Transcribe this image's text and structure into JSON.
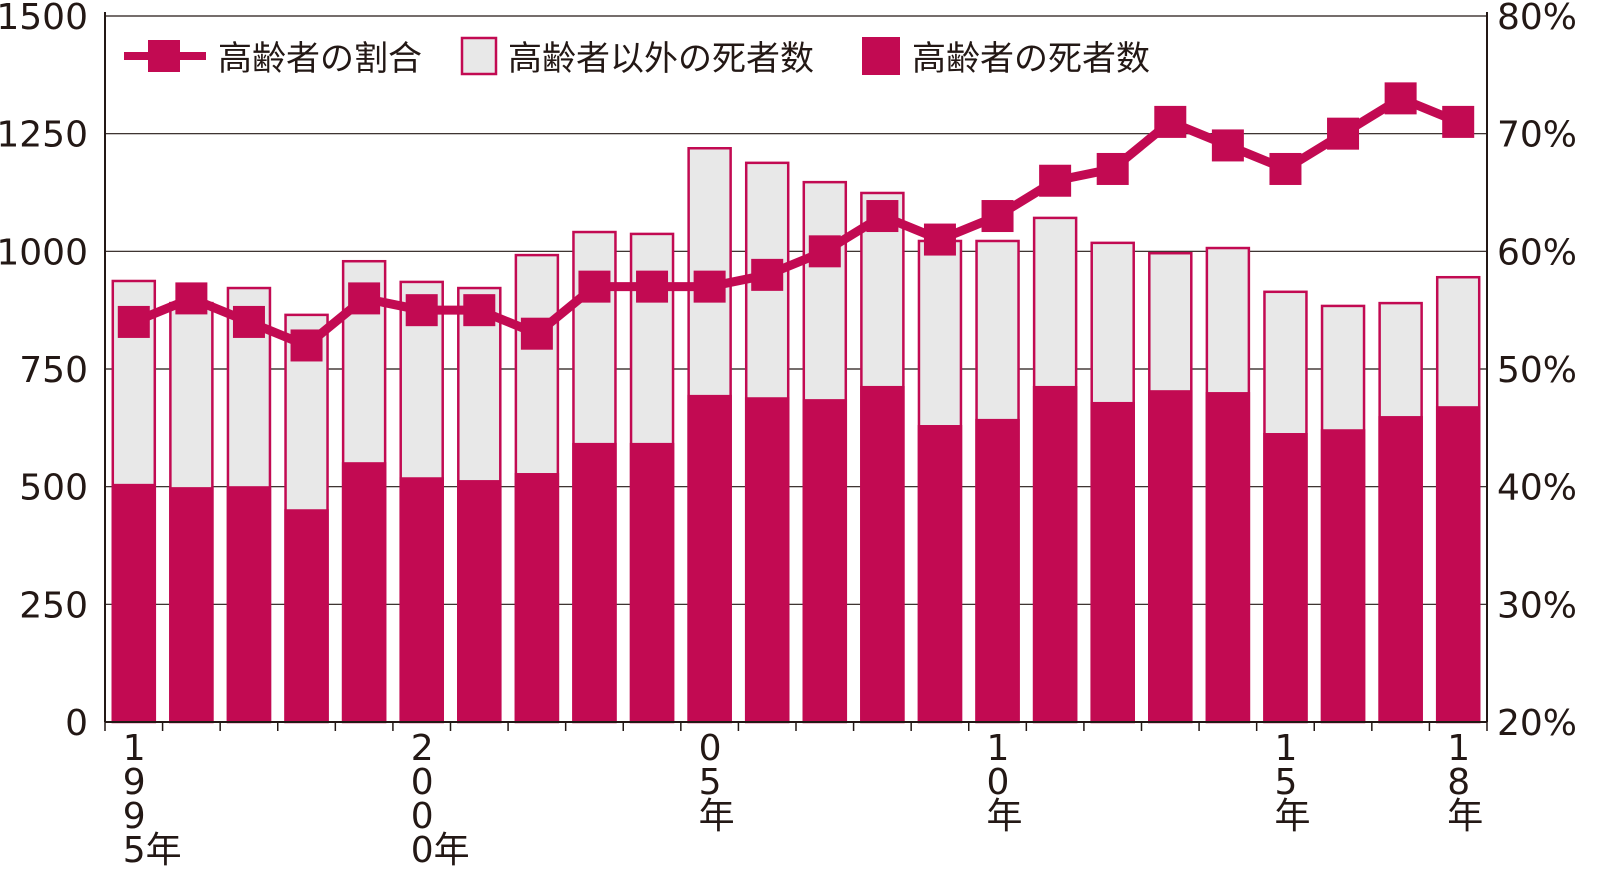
{
  "chart_data": {
    "type": "bar+line",
    "years": [
      1995,
      1996,
      1997,
      1998,
      1999,
      2000,
      2001,
      2002,
      2003,
      2004,
      2005,
      2006,
      2007,
      2008,
      2009,
      2010,
      2011,
      2012,
      2013,
      2014,
      2015,
      2016,
      2017,
      2018
    ],
    "x_tick_labels": [
      {
        "index": 0,
        "label": [
          "1",
          "9",
          "9",
          "5年"
        ]
      },
      {
        "index": 5,
        "label": [
          "2",
          "0",
          "0",
          "0年"
        ]
      },
      {
        "index": 10,
        "label": [
          "0",
          "5",
          "年"
        ]
      },
      {
        "index": 15,
        "label": [
          "1",
          "0",
          "年"
        ]
      },
      {
        "index": 20,
        "label": [
          "1",
          "5",
          "年"
        ]
      },
      {
        "index": 23,
        "label": [
          "1",
          "8",
          "年"
        ]
      }
    ],
    "left_axis": {
      "ylim": [
        0,
        1500
      ],
      "ticks": [
        "0",
        "250",
        "500",
        "750",
        "1000",
        "1250",
        "1500"
      ]
    },
    "right_axis": {
      "ylim": [
        20,
        80
      ],
      "ticks": [
        "20%",
        "30%",
        "40%",
        "50%",
        "60%",
        "70%",
        "80%"
      ]
    },
    "grid": true,
    "legend_position": "top-left",
    "series": [
      {
        "name": "高齢者の割合",
        "type": "line",
        "axis": "right",
        "values": [
          54,
          56,
          54,
          52,
          56,
          55,
          55,
          53,
          57,
          57,
          57,
          58,
          60,
          63,
          61,
          63,
          66,
          67,
          71,
          69,
          67,
          70,
          73,
          71
        ]
      },
      {
        "name": "高齢者以外の死者数",
        "type": "stacked-bar",
        "axis": "left",
        "values": [
          431,
          391,
          421,
          413,
          427,
          415,
          408,
          463,
          448,
          444,
          524,
          498,
          461,
          410,
          391,
          378,
          357,
          338,
          291,
          306,
          300,
          262,
          240,
          274
        ]
      },
      {
        "name": "高齢者の死者数",
        "type": "stacked-bar",
        "axis": "left",
        "values": [
          506,
          499,
          501,
          452,
          552,
          520,
          514,
          529,
          593,
          593,
          695,
          690,
          686,
          714,
          631,
          644,
          714,
          680,
          705,
          701,
          614,
          622,
          650,
          671
        ]
      }
    ],
    "colors": {
      "accent": "#c20a52",
      "other": "#e8e8e8",
      "grid": "#231815"
    }
  }
}
